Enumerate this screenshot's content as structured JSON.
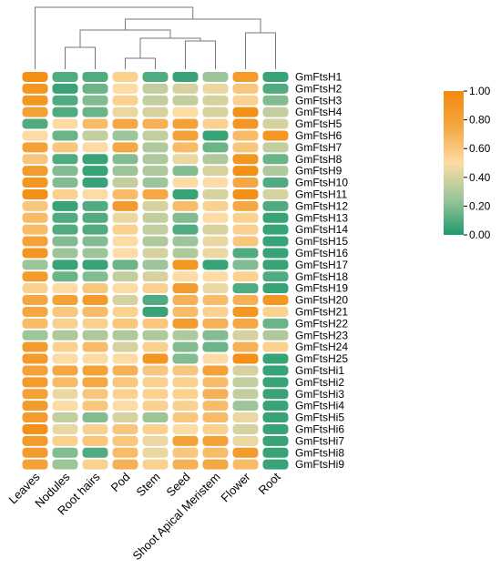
{
  "chart_data": {
    "type": "heatmap",
    "title": "",
    "columns": [
      "Leaves",
      "Nodules",
      "Root hairs",
      "Pod",
      "Stem",
      "Seed",
      "Shoot Apical Meristem",
      "Flower",
      "Root"
    ],
    "rows": [
      "GmFtsH1",
      "GmFtsH2",
      "GmFtsH3",
      "GmFtsH4",
      "GmFtsH5",
      "GmFtsH6",
      "GmFtsH7",
      "GmFtsH8",
      "GmFtsH9",
      "GmFtsH10",
      "GmFtsH11",
      "GmFtsH12",
      "GmFtsH13",
      "GmFtsH14",
      "GmFtsH15",
      "GmFtsH16",
      "GmFtsH17",
      "GmFtsH18",
      "GmFtsH19",
      "GmFtsH20",
      "GmFtsH21",
      "GmFtsH22",
      "GmFtsH23",
      "GmFtsH24",
      "GmFtsH25",
      "GmFtsHi1",
      "GmFtsHi2",
      "GmFtsHi3",
      "GmFtsHi4",
      "GmFtsHi5",
      "GmFtsHi6",
      "GmFtsHi7",
      "GmFtsHi8",
      "GmFtsHi9"
    ],
    "values": [
      [
        0.95,
        0.1,
        0.1,
        0.55,
        0.1,
        0.05,
        0.25,
        0.85,
        0.05
      ],
      [
        0.9,
        0.05,
        0.15,
        0.5,
        0.35,
        0.4,
        0.45,
        0.6,
        0.1
      ],
      [
        0.9,
        0.1,
        0.2,
        0.55,
        0.35,
        0.35,
        0.4,
        0.55,
        0.2
      ],
      [
        0.8,
        0.1,
        0.15,
        0.45,
        0.4,
        0.5,
        0.4,
        0.95,
        0.35
      ],
      [
        0.1,
        0.5,
        0.65,
        0.75,
        0.7,
        0.8,
        0.55,
        0.9,
        0.4
      ],
      [
        0.5,
        0.15,
        0.35,
        0.25,
        0.35,
        0.8,
        0.05,
        0.65,
        0.9
      ],
      [
        0.8,
        0.6,
        0.5,
        0.75,
        0.3,
        0.65,
        0.15,
        0.6,
        0.35
      ],
      [
        0.6,
        0.1,
        0.05,
        0.2,
        0.3,
        0.45,
        0.3,
        0.9,
        0.15
      ],
      [
        0.85,
        0.2,
        0.05,
        0.25,
        0.3,
        0.2,
        0.4,
        0.95,
        0.3
      ],
      [
        0.9,
        0.2,
        0.05,
        0.35,
        0.25,
        0.5,
        0.5,
        0.75,
        0.1
      ],
      [
        0.95,
        0.55,
        0.5,
        0.65,
        0.75,
        0.05,
        0.4,
        0.95,
        0.4
      ],
      [
        0.6,
        0.05,
        0.1,
        0.85,
        0.4,
        0.65,
        0.55,
        0.75,
        0.1
      ],
      [
        0.65,
        0.1,
        0.1,
        0.45,
        0.35,
        0.2,
        0.5,
        0.55,
        0.05
      ],
      [
        0.65,
        0.1,
        0.1,
        0.55,
        0.35,
        0.1,
        0.4,
        0.55,
        0.05
      ],
      [
        0.8,
        0.2,
        0.2,
        0.5,
        0.3,
        0.25,
        0.45,
        0.6,
        0.05
      ],
      [
        0.9,
        0.25,
        0.25,
        0.5,
        0.4,
        0.3,
        0.45,
        0.1,
        0.05
      ],
      [
        0.25,
        0.05,
        0.05,
        0.15,
        0.25,
        0.9,
        0.05,
        0.2,
        0.05
      ],
      [
        0.85,
        0.15,
        0.2,
        0.35,
        0.4,
        0.5,
        0.5,
        0.55,
        0.1
      ],
      [
        0.55,
        0.5,
        0.6,
        0.5,
        0.55,
        0.85,
        0.45,
        0.1,
        0.05
      ],
      [
        0.75,
        0.8,
        0.85,
        0.4,
        0.1,
        0.7,
        0.65,
        0.7,
        0.9
      ],
      [
        0.75,
        0.6,
        0.65,
        0.55,
        0.05,
        0.65,
        0.55,
        0.9,
        0.55
      ],
      [
        0.65,
        0.55,
        0.55,
        0.6,
        0.6,
        0.85,
        0.7,
        0.75,
        0.15
      ],
      [
        0.25,
        0.3,
        0.3,
        0.3,
        0.3,
        0.3,
        0.2,
        0.4,
        0.3
      ],
      [
        0.85,
        0.55,
        0.65,
        0.4,
        0.55,
        0.2,
        0.15,
        0.7,
        0.55
      ],
      [
        0.85,
        0.5,
        0.5,
        0.5,
        0.9,
        0.2,
        0.5,
        0.95,
        0.05
      ],
      [
        0.8,
        0.75,
        0.8,
        0.7,
        0.6,
        0.6,
        0.8,
        0.4,
        0.05
      ],
      [
        0.85,
        0.65,
        0.75,
        0.6,
        0.55,
        0.55,
        0.65,
        0.35,
        0.05
      ],
      [
        0.8,
        0.45,
        0.6,
        0.55,
        0.55,
        0.55,
        0.7,
        0.35,
        0.05
      ],
      [
        0.85,
        0.5,
        0.6,
        0.5,
        0.55,
        0.55,
        0.65,
        0.25,
        0.05
      ],
      [
        0.85,
        0.35,
        0.2,
        0.4,
        0.25,
        0.6,
        0.65,
        0.45,
        0.05
      ],
      [
        0.95,
        0.45,
        0.55,
        0.6,
        0.55,
        0.5,
        0.55,
        0.4,
        0.05
      ],
      [
        0.85,
        0.55,
        0.6,
        0.6,
        0.45,
        0.8,
        0.8,
        0.45,
        0.05
      ],
      [
        0.85,
        0.2,
        0.1,
        0.65,
        0.45,
        0.6,
        0.65,
        0.85,
        0.05
      ],
      [
        0.8,
        0.25,
        0.55,
        0.7,
        0.55,
        0.7,
        0.75,
        0.65,
        0.05
      ]
    ],
    "color_scale": {
      "min": 0,
      "max": 1,
      "ticks": [
        "0.00",
        "0.20",
        "0.40",
        "0.60",
        "0.80",
        "1.00"
      ],
      "colors": [
        "#1f9a6e",
        "#9cc59a",
        "#fddba4",
        "#f4a742",
        "#f28a0c"
      ]
    },
    "dendrogram": "columns clustered: Leaves | ((Nodules, Root hairs), ((Pod, Stem), (Seed, Shoot Apical Meristem))), (Flower, Root)",
    "legend_placement": "right"
  }
}
